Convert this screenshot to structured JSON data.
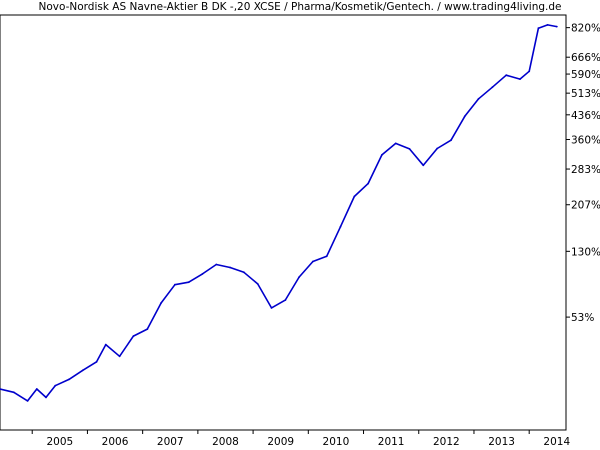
{
  "chart_data": {
    "type": "line",
    "title": "Novo-Nordisk AS Navne-Aktier B DK -,20 XCSE / Pharma/Kosmetik/Gentech. / www.trading4living.de",
    "xlabel": "",
    "ylabel": "",
    "x_scale": "time",
    "y_scale": "log",
    "xlim": [
      "2004-06",
      "2014-09"
    ],
    "ylim": [
      -24,
      895
    ],
    "grid": false,
    "legend": "none",
    "x_ticks": [
      "2005",
      "2006",
      "2007",
      "2008",
      "2009",
      "2010",
      "2011",
      "2012",
      "2013",
      "2014"
    ],
    "y_ticks": [
      "820%",
      "666%",
      "590%",
      "513%",
      "436%",
      "360%",
      "283%",
      "207%",
      "130%",
      "53%"
    ],
    "series": [
      {
        "color": "#0000cc",
        "x": [
          "2004-06",
          "2004-09",
          "2004-12",
          "2005-02",
          "2005-04",
          "2005-06",
          "2005-09",
          "2005-12",
          "2006-03",
          "2006-05",
          "2006-08",
          "2006-11",
          "2007-02",
          "2007-05",
          "2007-08",
          "2007-11",
          "2008-02",
          "2008-05",
          "2008-08",
          "2008-11",
          "2009-02",
          "2009-05",
          "2009-08",
          "2009-11",
          "2010-02",
          "2010-05",
          "2010-08",
          "2010-11",
          "2011-02",
          "2011-05",
          "2011-08",
          "2011-11",
          "2012-02",
          "2012-05",
          "2012-08",
          "2012-11",
          "2013-02",
          "2013-05",
          "2013-08",
          "2013-11",
          "2014-01",
          "2014-03",
          "2014-05",
          "2014-07"
        ],
        "values": [
          -2,
          -4,
          -9,
          -2,
          -7,
          0,
          4,
          10,
          16,
          29,
          20,
          36,
          42,
          67,
          87,
          90,
          100,
          112,
          108,
          102,
          88,
          62,
          70,
          96,
          116,
          123,
          168,
          223,
          250,
          318,
          349,
          334,
          292,
          335,
          358,
          431,
          492,
          536,
          585,
          569,
          602,
          817,
          836,
          826
        ]
      }
    ]
  }
}
